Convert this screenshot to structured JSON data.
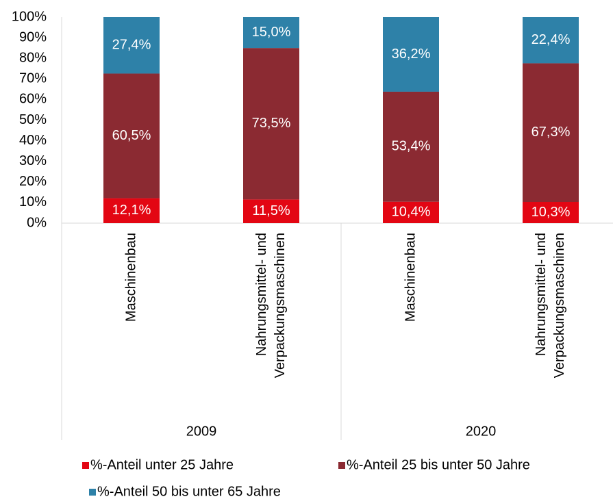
{
  "chart_data": {
    "type": "stacked_bar",
    "categories": [
      [
        "Maschinenbau"
      ],
      [
        "Nahrungsmittel- und",
        "Verpackungsmaschinen"
      ],
      [
        "Maschinenbau"
      ],
      [
        "Nahrungsmittel- und",
        "Verpackungsmaschinen"
      ]
    ],
    "groups": [
      "2009",
      "2020"
    ],
    "series": [
      {
        "name": "%-Anteil unter 25 Jahre",
        "color": "#e30613",
        "values": [
          12.1,
          11.5,
          10.4,
          10.3
        ],
        "value_labels": [
          "12,1%",
          "11,5%",
          "10,4%",
          "10,3%"
        ]
      },
      {
        "name": "%-Anteil 25 bis unter 50 Jahre",
        "color": "#8b2a32",
        "values": [
          60.5,
          73.5,
          53.4,
          67.3
        ],
        "value_labels": [
          "60,5%",
          "73,5%",
          "53,4%",
          "67,3%"
        ]
      },
      {
        "name": "%-Anteil 50 bis unter 65 Jahre",
        "color": "#2e81a8",
        "values": [
          27.4,
          15.0,
          36.2,
          22.4
        ],
        "value_labels": [
          "27,4%",
          "15,0%",
          "36,2%",
          "22,4%"
        ]
      }
    ],
    "ylim": [
      0,
      100
    ],
    "yticks": [
      {
        "value": 0,
        "label": "0%"
      },
      {
        "value": 10,
        "label": "10%"
      },
      {
        "value": 20,
        "label": "20%"
      },
      {
        "value": 30,
        "label": "30%"
      },
      {
        "value": 40,
        "label": "40%"
      },
      {
        "value": 50,
        "label": "50%"
      },
      {
        "value": 60,
        "label": "60%"
      },
      {
        "value": 70,
        "label": "70%"
      },
      {
        "value": 80,
        "label": "80%"
      },
      {
        "value": 90,
        "label": "90%"
      },
      {
        "value": 100,
        "label": "100%"
      }
    ],
    "legend": "bottom"
  }
}
